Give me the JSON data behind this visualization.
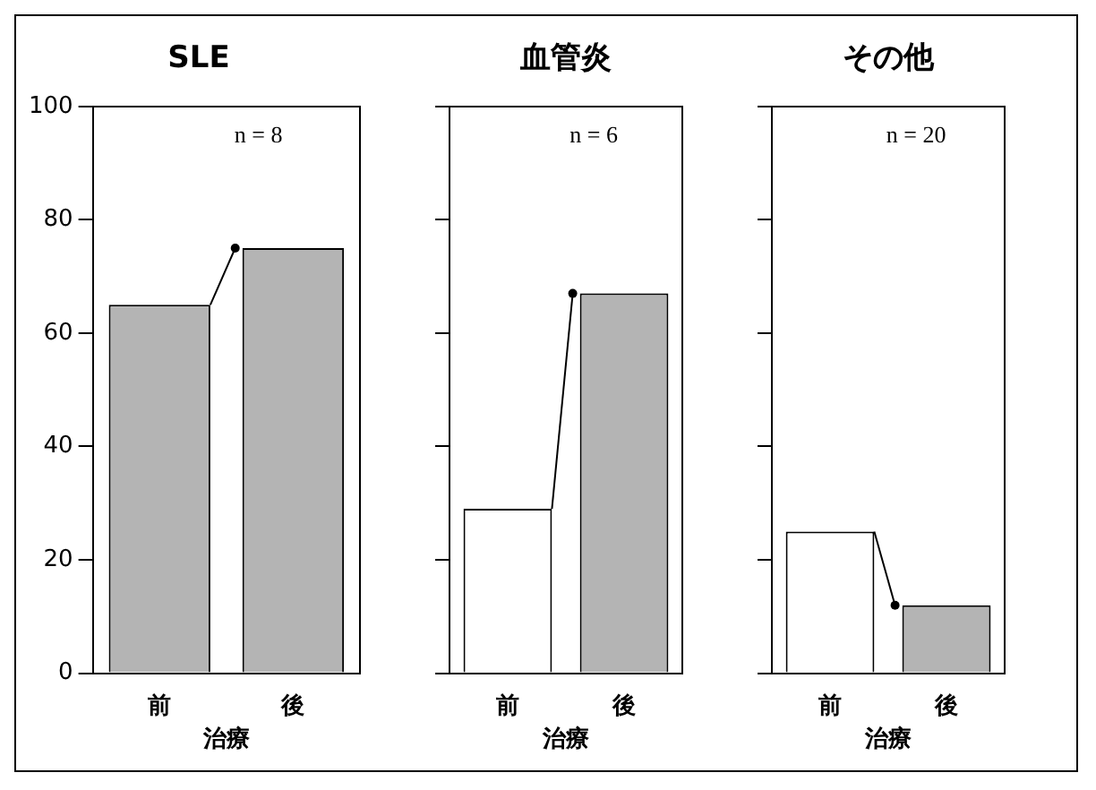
{
  "chart_data": [
    {
      "type": "bar",
      "title": "SLE",
      "categories": [
        "前",
        "後"
      ],
      "values": [
        65,
        75
      ],
      "colors": [
        "#b4b4b4",
        "#b4b4b4"
      ],
      "xlabel": "治療",
      "ylim": [
        0,
        100
      ],
      "yticks": [
        0,
        20,
        40,
        60,
        80,
        100
      ],
      "annotations": [
        "n = 8"
      ]
    },
    {
      "type": "bar",
      "title": "血管炎",
      "categories": [
        "前",
        "後"
      ],
      "values": [
        29,
        67
      ],
      "colors": [
        "#ffffff",
        "#b4b4b4"
      ],
      "xlabel": "治療",
      "ylim": [
        0,
        100
      ],
      "yticks": [
        0,
        20,
        40,
        60,
        80,
        100
      ],
      "tick_labels": "x",
      "annotations": [
        "n = 6"
      ]
    },
    {
      "type": "bar",
      "title": "その他",
      "categories": [
        "前",
        "後"
      ],
      "values": [
        25,
        12
      ],
      "colors": [
        "#ffffff",
        "#b4b4b4"
      ],
      "xlabel": "治療",
      "ylim": [
        0,
        100
      ],
      "yticks": [
        0,
        20,
        40,
        60,
        80,
        100
      ],
      "tick_labels": "x",
      "annotations": [
        "n = 20"
      ]
    }
  ]
}
